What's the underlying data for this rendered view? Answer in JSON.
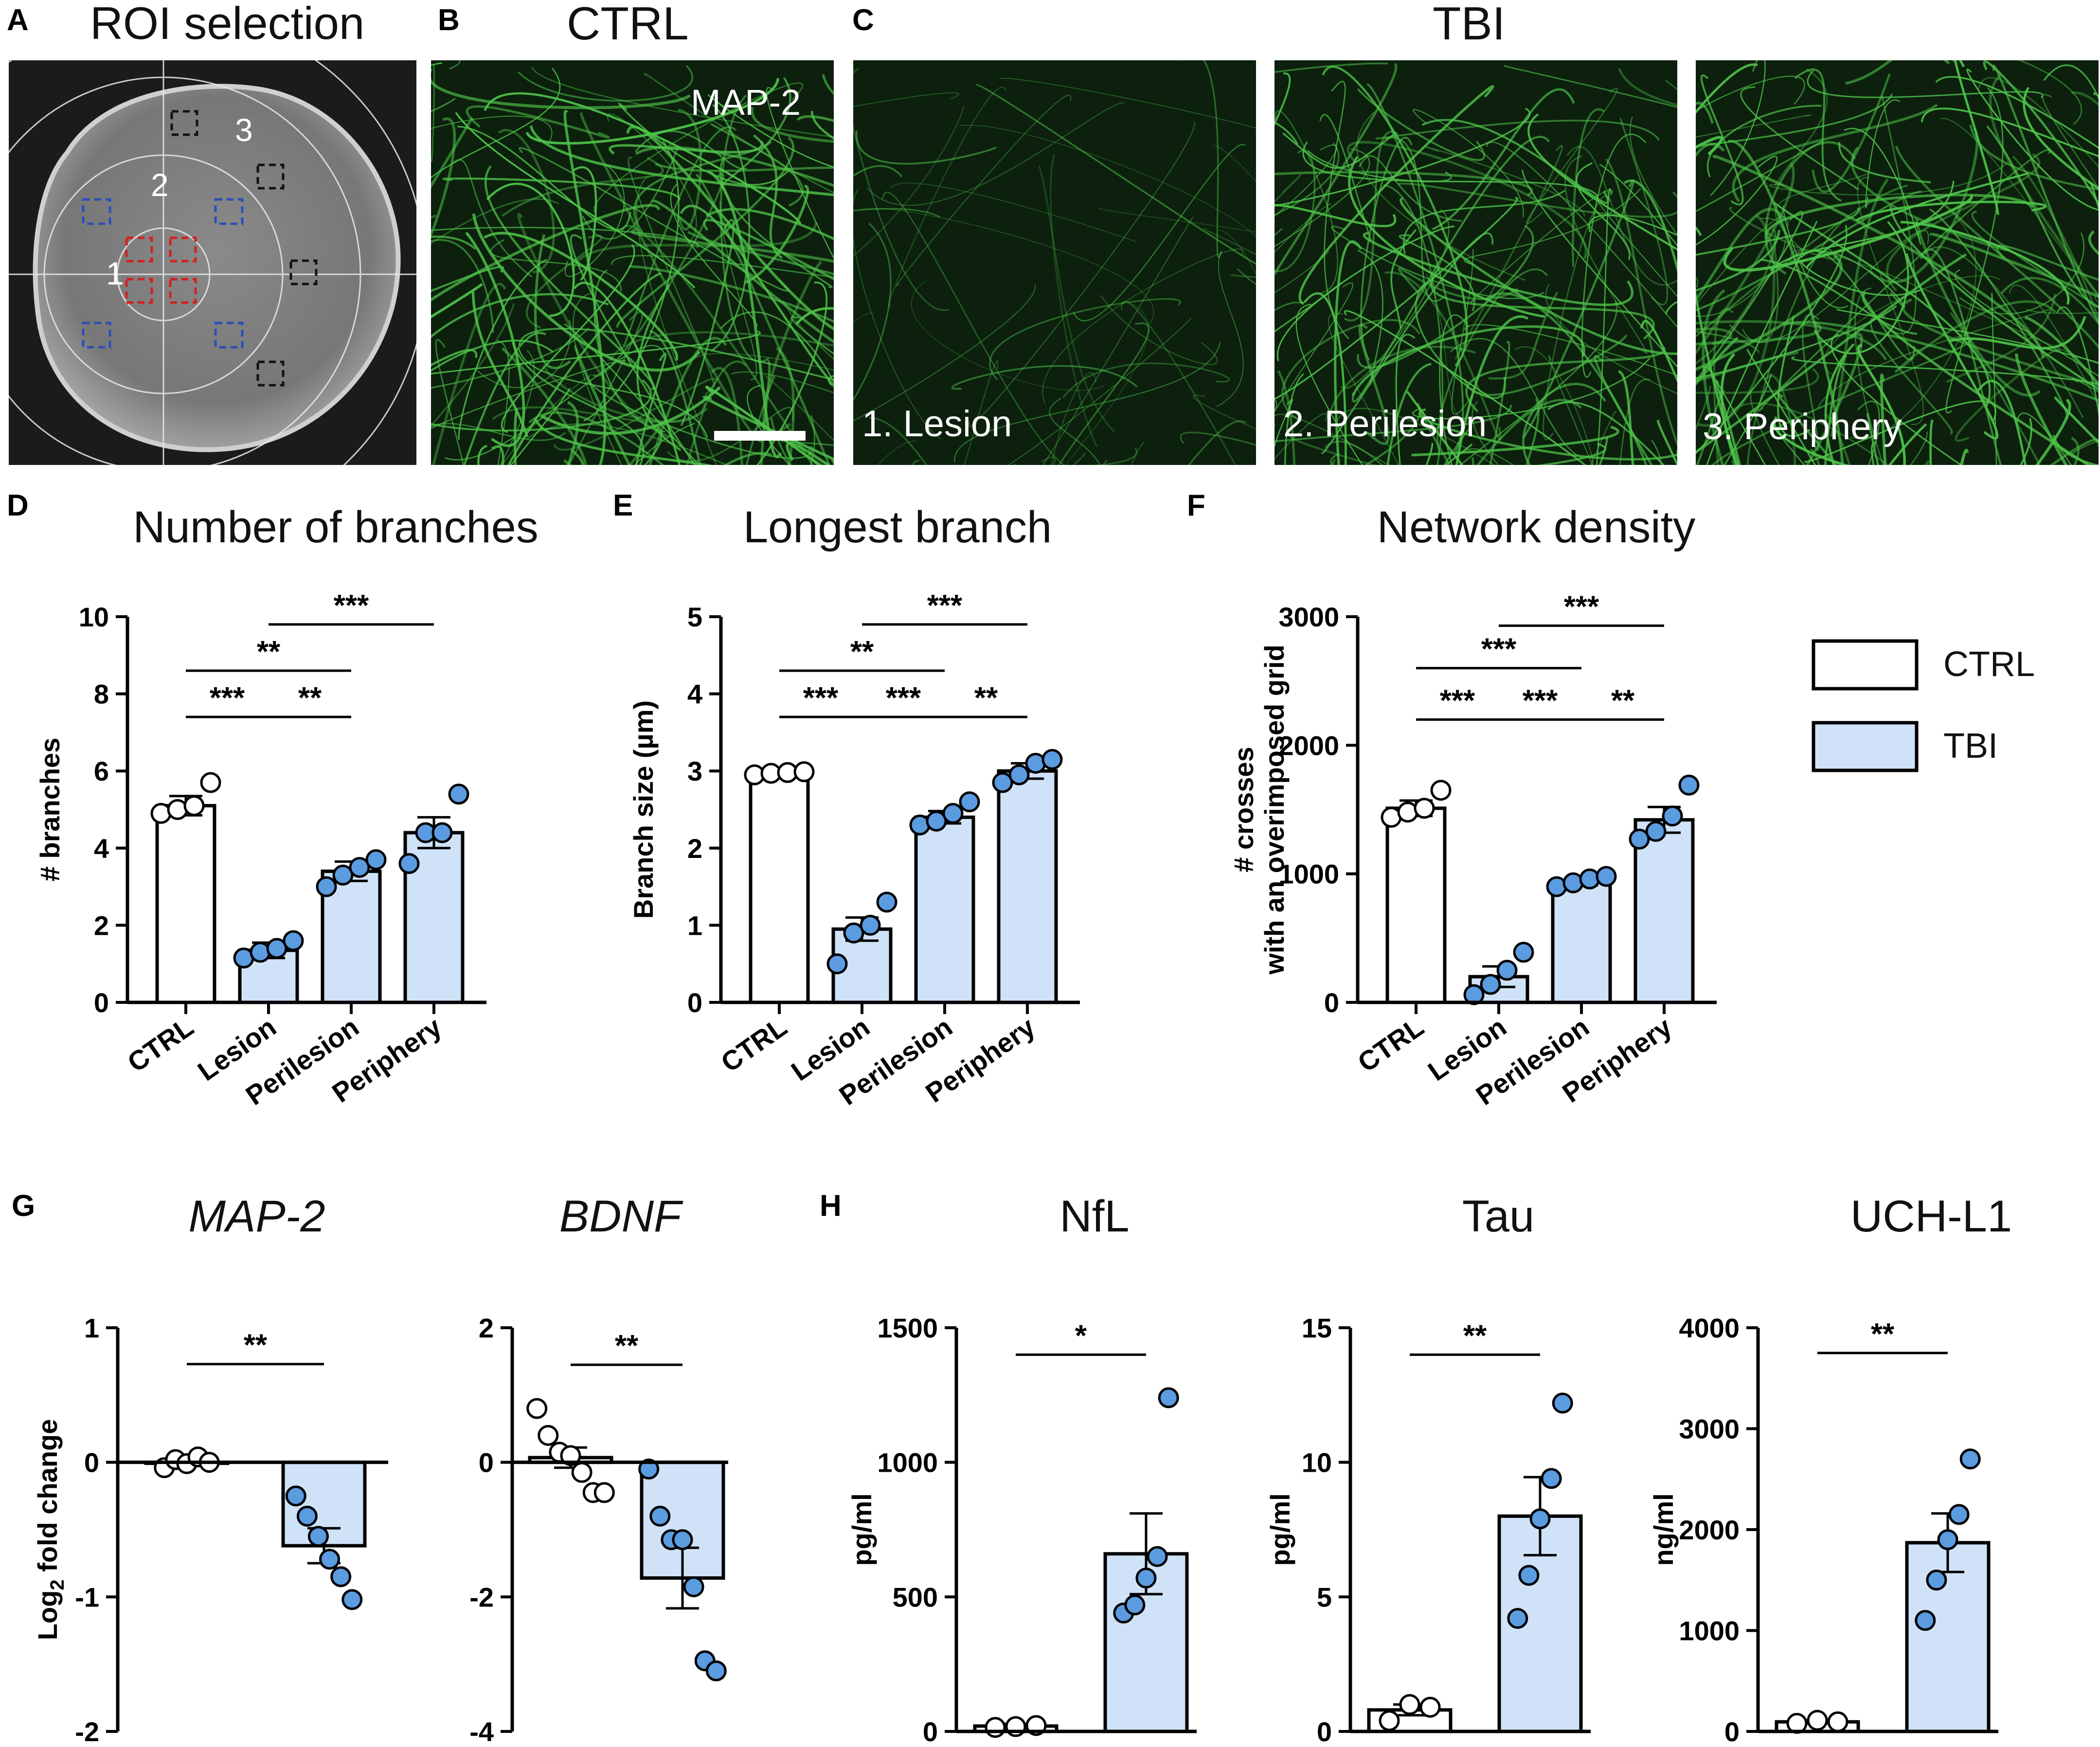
{
  "panel_a": {
    "label": "A",
    "title": "ROI selection",
    "zones": [
      "1",
      "2",
      "3"
    ]
  },
  "panel_b": {
    "label": "B",
    "title": "CTRL",
    "stain": "MAP-2"
  },
  "panel_c": {
    "label": "C",
    "title": "TBI",
    "captions": [
      "1. Lesion",
      "2. Perilesion",
      "3. Periphery"
    ]
  },
  "legend": {
    "items": [
      {
        "label": "CTRL",
        "color": "#ffffff"
      },
      {
        "label": "TBI",
        "color": "#cfe2f7"
      }
    ]
  },
  "colors": {
    "ctrl_fill": "#ffffff",
    "tbi_fill": "#cfe2f7",
    "tbi_point": "#5b9be0",
    "neurite": "#4fc44a",
    "image_bg": "#0c200d"
  },
  "chart_data": [
    {
      "id": "D",
      "label": "D",
      "type": "bar",
      "title": "Number of branches",
      "ylabel": "# branches",
      "ylim": [
        0,
        10
      ],
      "yticks": [
        0,
        2,
        4,
        6,
        8,
        10
      ],
      "categories": [
        "CTRL",
        "Lesion",
        "Perilesion",
        "Periphery"
      ],
      "values": [
        5.1,
        1.35,
        3.4,
        4.4
      ],
      "sem": [
        0.25,
        0.2,
        0.25,
        0.4
      ],
      "points": [
        [
          4.9,
          5.0,
          5.1,
          5.7
        ],
        [
          1.15,
          1.3,
          1.4,
          1.6
        ],
        [
          3.0,
          3.3,
          3.5,
          3.7
        ],
        [
          3.6,
          4.4,
          4.4,
          5.4
        ]
      ],
      "groups": [
        "CTRL",
        "TBI",
        "TBI",
        "TBI"
      ],
      "significance": [
        {
          "from": 0,
          "to": 1,
          "label": "***",
          "y": 7.4
        },
        {
          "from": 1,
          "to": 2,
          "label": "**",
          "y": 7.4
        },
        {
          "from": 0,
          "to": 2,
          "label": "**",
          "y": 8.6
        },
        {
          "from": 1,
          "to": 3,
          "label": "***",
          "y": 9.8
        }
      ]
    },
    {
      "id": "E",
      "label": "E",
      "type": "bar",
      "title": "Longest branch",
      "ylabel": "Branch size (µm)",
      "ylim": [
        0,
        5
      ],
      "yticks": [
        0,
        1,
        2,
        3,
        4,
        5
      ],
      "categories": [
        "CTRL",
        "Lesion",
        "Perilesion",
        "Periphery"
      ],
      "values": [
        2.97,
        0.95,
        2.4,
        3.0
      ],
      "sem": [
        0.05,
        0.15,
        0.08,
        0.1
      ],
      "points": [
        [
          2.95,
          2.97,
          2.98,
          2.99
        ],
        [
          0.5,
          0.9,
          1.0,
          1.3
        ],
        [
          2.3,
          2.35,
          2.45,
          2.6
        ],
        [
          2.85,
          2.95,
          3.1,
          3.15
        ]
      ],
      "groups": [
        "CTRL",
        "TBI",
        "TBI",
        "TBI"
      ],
      "significance": [
        {
          "from": 0,
          "to": 1,
          "label": "***",
          "y": 3.7
        },
        {
          "from": 1,
          "to": 2,
          "label": "***",
          "y": 3.7
        },
        {
          "from": 2,
          "to": 3,
          "label": "**",
          "y": 3.7
        },
        {
          "from": 0,
          "to": 2,
          "label": "**",
          "y": 4.3
        },
        {
          "from": 1,
          "to": 3,
          "label": "***",
          "y": 4.9
        }
      ]
    },
    {
      "id": "F",
      "label": "F",
      "type": "bar",
      "title": "Network density",
      "ylabel": "# crosses with an overimposed grid",
      "ylim": [
        0,
        3000
      ],
      "yticks": [
        0,
        1000,
        2000,
        3000
      ],
      "categories": [
        "CTRL",
        "Lesion",
        "Perilesion",
        "Periphery"
      ],
      "values": [
        1510,
        200,
        940,
        1420
      ],
      "sem": [
        60,
        80,
        30,
        100
      ],
      "points": [
        [
          1440,
          1480,
          1510,
          1650
        ],
        [
          60,
          140,
          250,
          390
        ],
        [
          900,
          930,
          960,
          980
        ],
        [
          1270,
          1330,
          1450,
          1690
        ]
      ],
      "groups": [
        "CTRL",
        "TBI",
        "TBI",
        "TBI"
      ],
      "significance": [
        {
          "from": 0,
          "to": 1,
          "label": "***",
          "y": 2200
        },
        {
          "from": 1,
          "to": 2,
          "label": "***",
          "y": 2200
        },
        {
          "from": 2,
          "to": 3,
          "label": "**",
          "y": 2200
        },
        {
          "from": 0,
          "to": 2,
          "label": "***",
          "y": 2600
        },
        {
          "from": 1,
          "to": 3,
          "label": "***",
          "y": 2930
        }
      ]
    },
    {
      "id": "G1",
      "label": "G",
      "type": "bar",
      "title": "MAP-2",
      "italic": true,
      "ylabel": "Log2 fold change",
      "ylim": [
        -2,
        1
      ],
      "yticks": [
        -2,
        -1,
        0,
        1
      ],
      "ytick_labels": [
        "-2",
        "-1",
        "0",
        "1"
      ],
      "categories": [
        "CTRL",
        "TBI"
      ],
      "values": [
        0.0,
        -0.62
      ],
      "sem": [
        0.02,
        0.13
      ],
      "points": [
        [
          -0.04,
          0.02,
          -0.01,
          0.04,
          0.0
        ],
        [
          -0.25,
          -0.4,
          -0.55,
          -0.72,
          -0.85,
          -1.02
        ]
      ],
      "groups": [
        "CTRL",
        "TBI"
      ],
      "significance": [
        {
          "from": 0,
          "to": 1,
          "label": "**",
          "y": 0.73
        }
      ]
    },
    {
      "id": "G2",
      "label": "",
      "type": "bar",
      "title": "BDNF",
      "italic": true,
      "ylabel": "",
      "ylim": [
        -4,
        2
      ],
      "yticks": [
        -4,
        -2,
        0,
        2
      ],
      "ytick_labels": [
        "-4",
        "-2",
        "0",
        "2"
      ],
      "categories": [
        "CTRL",
        "TBI"
      ],
      "values": [
        0.07,
        -1.72
      ],
      "sem": [
        0.15,
        0.45
      ],
      "points": [
        [
          0.8,
          0.4,
          0.15,
          0.1,
          -0.15,
          -0.45,
          -0.45
        ],
        [
          -0.1,
          -0.8,
          -1.15,
          -1.15,
          -1.85,
          -2.95,
          -3.1
        ]
      ],
      "groups": [
        "CTRL",
        "TBI"
      ],
      "significance": [
        {
          "from": 0,
          "to": 1,
          "label": "**",
          "y": 1.45
        }
      ]
    },
    {
      "id": "H1",
      "label": "H",
      "type": "bar",
      "title": "NfL",
      "ylabel": "pg/ml",
      "ylim": [
        0,
        1500
      ],
      "yticks": [
        0,
        500,
        1000,
        1500
      ],
      "categories": [
        "CTRL",
        "TBI"
      ],
      "values": [
        20,
        660
      ],
      "sem": [
        8,
        150
      ],
      "points": [
        [
          15,
          18,
          22
        ],
        [
          440,
          470,
          570,
          650,
          1240
        ]
      ],
      "groups": [
        "CTRL",
        "TBI"
      ],
      "significance": [
        {
          "from": 0,
          "to": 1,
          "label": "*",
          "y": 1400
        }
      ]
    },
    {
      "id": "H2",
      "label": "",
      "type": "bar",
      "title": "Tau",
      "ylabel": "pg/ml",
      "ylim": [
        0,
        15
      ],
      "yticks": [
        0,
        5,
        10,
        15
      ],
      "categories": [
        "CTRL",
        "TBI"
      ],
      "values": [
        0.8,
        8.0
      ],
      "sem": [
        0.2,
        1.45
      ],
      "points": [
        [
          0.4,
          1.0,
          0.9
        ],
        [
          4.2,
          5.8,
          7.9,
          9.4,
          12.2
        ]
      ],
      "groups": [
        "CTRL",
        "TBI"
      ],
      "significance": [
        {
          "from": 0,
          "to": 1,
          "label": "**",
          "y": 14.0
        }
      ]
    },
    {
      "id": "H3",
      "label": "",
      "type": "bar",
      "title": "UCH-L1",
      "ylabel": "ng/ml",
      "ylim": [
        0,
        4000
      ],
      "yticks": [
        0,
        1000,
        2000,
        3000,
        4000
      ],
      "categories": [
        "CTRL",
        "TBI"
      ],
      "values": [
        95,
        1870
      ],
      "sem": [
        15,
        290
      ],
      "points": [
        [
          80,
          110,
          95
        ],
        [
          1100,
          1500,
          1900,
          2150,
          2700
        ]
      ],
      "groups": [
        "CTRL",
        "TBI"
      ],
      "significance": [
        {
          "from": 0,
          "to": 1,
          "label": "**",
          "y": 3750
        }
      ]
    }
  ]
}
